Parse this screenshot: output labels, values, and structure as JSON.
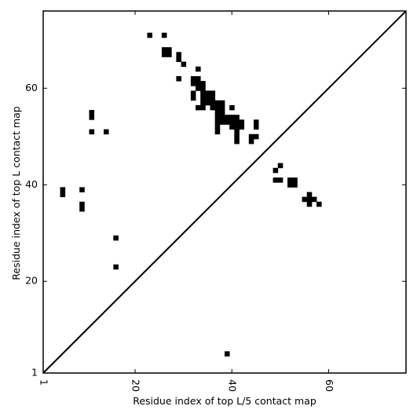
{
  "chart_data": {
    "type": "heatmap",
    "xlabel": "Residue index of top L/5 contact map",
    "ylabel": "Residue index of top L contact map",
    "xlim": [
      1,
      76
    ],
    "ylim": [
      1,
      76
    ],
    "x_ticks": [
      1,
      20,
      40,
      60
    ],
    "y_ticks": [
      1,
      20,
      40,
      60
    ],
    "x_tick_labels": [
      "1",
      "20",
      "40",
      "60"
    ],
    "y_tick_labels": [
      "1",
      "20",
      "40",
      "60"
    ],
    "diagonal": true,
    "grid": false,
    "cell_color": "#000000",
    "cells": [
      [
        23,
        71
      ],
      [
        26,
        71
      ],
      [
        26,
        68
      ],
      [
        27,
        68
      ],
      [
        26,
        67
      ],
      [
        27,
        67
      ],
      [
        29,
        67
      ],
      [
        29,
        66
      ],
      [
        30,
        65
      ],
      [
        33,
        64
      ],
      [
        29,
        62
      ],
      [
        32,
        62
      ],
      [
        33,
        62
      ],
      [
        32,
        61
      ],
      [
        33,
        61
      ],
      [
        34,
        61
      ],
      [
        33,
        60
      ],
      [
        34,
        60
      ],
      [
        32,
        59
      ],
      [
        34,
        59
      ],
      [
        35,
        59
      ],
      [
        36,
        59
      ],
      [
        32,
        58
      ],
      [
        34,
        58
      ],
      [
        35,
        58
      ],
      [
        36,
        58
      ],
      [
        34,
        57
      ],
      [
        35,
        57
      ],
      [
        36,
        57
      ],
      [
        37,
        57
      ],
      [
        38,
        57
      ],
      [
        33,
        56
      ],
      [
        34,
        56
      ],
      [
        36,
        56
      ],
      [
        37,
        56
      ],
      [
        38,
        56
      ],
      [
        40,
        56
      ],
      [
        37,
        55
      ],
      [
        38,
        55
      ],
      [
        37,
        54
      ],
      [
        38,
        54
      ],
      [
        39,
        54
      ],
      [
        40,
        54
      ],
      [
        41,
        54
      ],
      [
        37,
        53
      ],
      [
        38,
        53
      ],
      [
        39,
        53
      ],
      [
        40,
        53
      ],
      [
        41,
        53
      ],
      [
        42,
        53
      ],
      [
        45,
        53
      ],
      [
        37,
        52
      ],
      [
        40,
        52
      ],
      [
        41,
        52
      ],
      [
        42,
        52
      ],
      [
        45,
        52
      ],
      [
        37,
        51
      ],
      [
        41,
        51
      ],
      [
        41,
        50
      ],
      [
        44,
        50
      ],
      [
        45,
        50
      ],
      [
        41,
        49
      ],
      [
        44,
        49
      ],
      [
        11,
        55
      ],
      [
        11,
        54
      ],
      [
        11,
        51
      ],
      [
        14,
        51
      ],
      [
        5,
        39
      ],
      [
        5,
        38
      ],
      [
        9,
        39
      ],
      [
        9,
        36
      ],
      [
        9,
        35
      ],
      [
        16,
        29
      ],
      [
        16,
        23
      ],
      [
        39,
        5
      ],
      [
        50,
        44
      ],
      [
        49,
        43
      ],
      [
        49,
        41
      ],
      [
        50,
        41
      ],
      [
        52,
        41
      ],
      [
        53,
        41
      ],
      [
        52,
        40
      ],
      [
        53,
        40
      ],
      [
        56,
        38
      ],
      [
        55,
        37
      ],
      [
        56,
        37
      ],
      [
        57,
        37
      ],
      [
        56,
        36
      ],
      [
        58,
        36
      ]
    ]
  }
}
